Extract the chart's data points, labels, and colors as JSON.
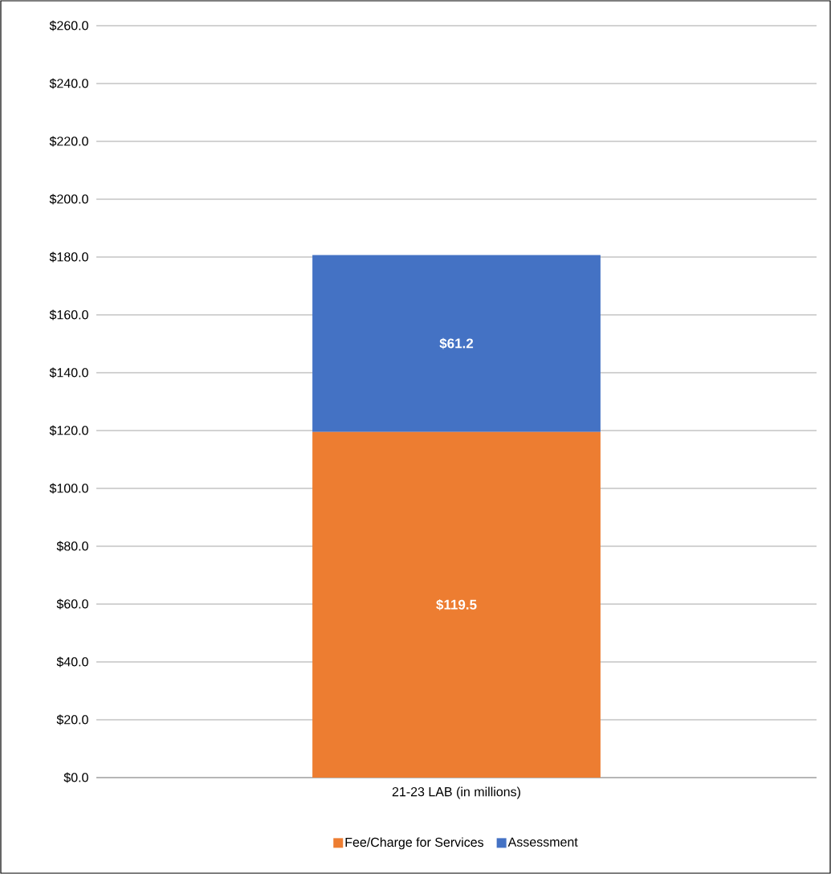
{
  "chart_data": {
    "type": "bar",
    "stacked": true,
    "categories": [
      "21-23 LAB (in millions)"
    ],
    "series": [
      {
        "name": "Fee/Charge for Services",
        "color": "#ed7d31",
        "values": [
          119.5
        ],
        "value_labels": [
          "$119.5"
        ]
      },
      {
        "name": "Assessment",
        "color": "#4472c4",
        "values": [
          61.2
        ],
        "value_labels": [
          "$61.2"
        ]
      }
    ],
    "ylim": [
      0,
      260
    ],
    "yticks": [
      {
        "value": 0,
        "label": "$0.0"
      },
      {
        "value": 20,
        "label": "$20.0"
      },
      {
        "value": 40,
        "label": "$40.0"
      },
      {
        "value": 60,
        "label": "$60.0"
      },
      {
        "value": 80,
        "label": "$80.0"
      },
      {
        "value": 100,
        "label": "$100.0"
      },
      {
        "value": 120,
        "label": "$120.0"
      },
      {
        "value": 140,
        "label": "$140.0"
      },
      {
        "value": 160,
        "label": "$160.0"
      },
      {
        "value": 180,
        "label": "$180.0"
      },
      {
        "value": 200,
        "label": "$200.0"
      },
      {
        "value": 220,
        "label": "$220.0"
      },
      {
        "value": 240,
        "label": "$240.0"
      },
      {
        "value": 260,
        "label": "$260.0"
      }
    ],
    "grid": "y",
    "legend": "bottom"
  }
}
